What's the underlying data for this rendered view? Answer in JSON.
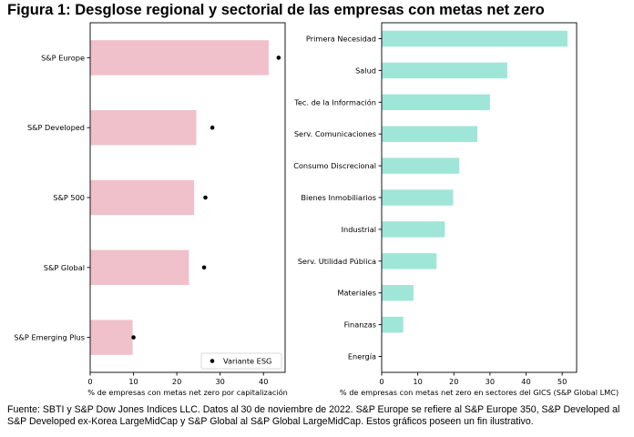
{
  "title": "Figura 1: Desglose regional y sectorial de las empresas con metas net zero",
  "footnote": "Fuente: SBTI y S&P Dow Jones Indices LLC. Datos al 30 de noviembre de 2022. S&P Europe se refiere al S&P Europe 350, S&P Developed al S&P Developed ex-Korea LargeMidCap y S&P Global al S&P Global LargeMidCap. Estos gráficos poseen un fin ilustrativo.",
  "colors": {
    "left_bars": "#f0c0cb",
    "right_bars": "#9fe6d8",
    "esg_marker": "#000000"
  },
  "chart_data": [
    {
      "type": "bar",
      "orientation": "horizontal",
      "categories": [
        "S&P Europe",
        "S&P Developed",
        "S&P 500",
        "S&P Global",
        "S&P Emerging Plus"
      ],
      "series": [
        {
          "name": "",
          "values": [
            41.2,
            24.5,
            24.0,
            22.8,
            9.8
          ]
        },
        {
          "name": "Variante ESG",
          "style": "scatter",
          "values": [
            43.5,
            28.2,
            26.6,
            26.3,
            10.0
          ]
        }
      ],
      "xlabel": "% de empresas con metas net zero por capitalización",
      "ylabel": "",
      "xlim": [
        0,
        45
      ],
      "xticks": [
        0,
        10,
        20,
        30,
        40
      ],
      "grid": false,
      "legend": {
        "position": "bottom-right",
        "entries": [
          "Variante ESG"
        ]
      }
    },
    {
      "type": "bar",
      "orientation": "horizontal",
      "categories": [
        "Primera Necesidad",
        "Salud",
        "Tec. de la Información",
        "Serv. Comunicaciones",
        "Consumo Discrecional",
        "Bienes Inmobiliarios",
        "Industrial",
        "Serv. Utilidad Pública",
        "Materiales",
        "Finanzas",
        "Energía"
      ],
      "values": [
        51.5,
        34.8,
        30.0,
        26.5,
        21.5,
        19.8,
        17.5,
        15.2,
        8.8,
        6.0,
        0.0
      ],
      "xlabel": "% de empresas con metas net zero en sectores del GICS (S&P Global LMC)",
      "ylabel": "",
      "xlim": [
        0,
        54
      ],
      "xticks": [
        0,
        10,
        20,
        30,
        40,
        50
      ],
      "grid": false
    }
  ]
}
